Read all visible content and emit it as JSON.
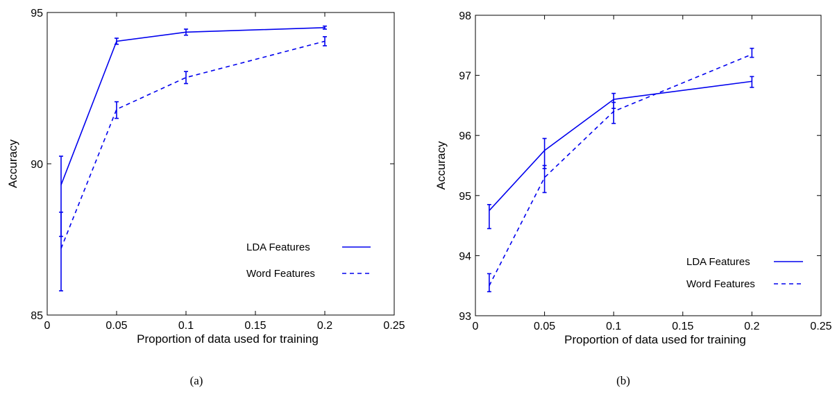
{
  "chart_data": [
    {
      "type": "line",
      "panel": "(a)",
      "xlabel": "Proportion of data used for training",
      "ylabel": "Accuracy",
      "xlim": [
        0,
        0.25
      ],
      "ylim": [
        85,
        95
      ],
      "xticks": [
        0,
        0.05,
        0.1,
        0.15,
        0.2,
        0.25
      ],
      "xtick_labels": [
        "0",
        "0.05",
        "0.1",
        "0.15",
        "0.2",
        "0.25"
      ],
      "yticks": [
        85,
        90,
        95
      ],
      "ytick_labels": [
        "85",
        "90",
        "95"
      ],
      "grid": false,
      "legend_position": "bottom-right",
      "x": [
        0.01,
        0.05,
        0.1,
        0.2
      ],
      "series": [
        {
          "name": "LDA Features",
          "style": "solid",
          "color": "#0000ee",
          "values": [
            89.3,
            94.05,
            94.35,
            94.5
          ],
          "err_low": [
            87.6,
            93.95,
            94.25,
            94.45
          ],
          "err_high": [
            90.25,
            94.15,
            94.45,
            94.55
          ]
        },
        {
          "name": "Word Features",
          "style": "dashed",
          "color": "#0000ee",
          "values": [
            87.2,
            91.8,
            92.85,
            94.05
          ],
          "err_low": [
            85.8,
            91.5,
            92.65,
            93.9
          ],
          "err_high": [
            88.4,
            92.05,
            93.05,
            94.2
          ]
        }
      ]
    },
    {
      "type": "line",
      "panel": "(b)",
      "xlabel": "Proportion of data used for training",
      "ylabel": "Accuracy",
      "xlim": [
        0,
        0.25
      ],
      "ylim": [
        93,
        98
      ],
      "xticks": [
        0,
        0.05,
        0.1,
        0.15,
        0.2,
        0.25
      ],
      "xtick_labels": [
        "0",
        "0.05",
        "0.1",
        "0.15",
        "0.2",
        "0.25"
      ],
      "yticks": [
        93,
        94,
        95,
        96,
        97,
        98
      ],
      "ytick_labels": [
        "93",
        "94",
        "95",
        "96",
        "97",
        "98"
      ],
      "grid": false,
      "legend_position": "bottom-right",
      "x": [
        0.01,
        0.05,
        0.1,
        0.2
      ],
      "series": [
        {
          "name": "LDA Features",
          "style": "solid",
          "color": "#0000ee",
          "values": [
            94.75,
            95.75,
            96.6,
            96.9
          ],
          "err_low": [
            94.45,
            95.45,
            96.45,
            96.8
          ],
          "err_high": [
            94.85,
            95.95,
            96.7,
            96.98
          ]
        },
        {
          "name": "Word Features",
          "style": "dashed",
          "color": "#0000ee",
          "values": [
            93.5,
            95.3,
            96.4,
            97.35
          ],
          "err_low": [
            93.4,
            95.05,
            96.2,
            97.3
          ],
          "err_high": [
            93.7,
            95.5,
            96.55,
            97.45
          ]
        }
      ]
    }
  ],
  "captions": [
    "(a)",
    "(b)"
  ]
}
